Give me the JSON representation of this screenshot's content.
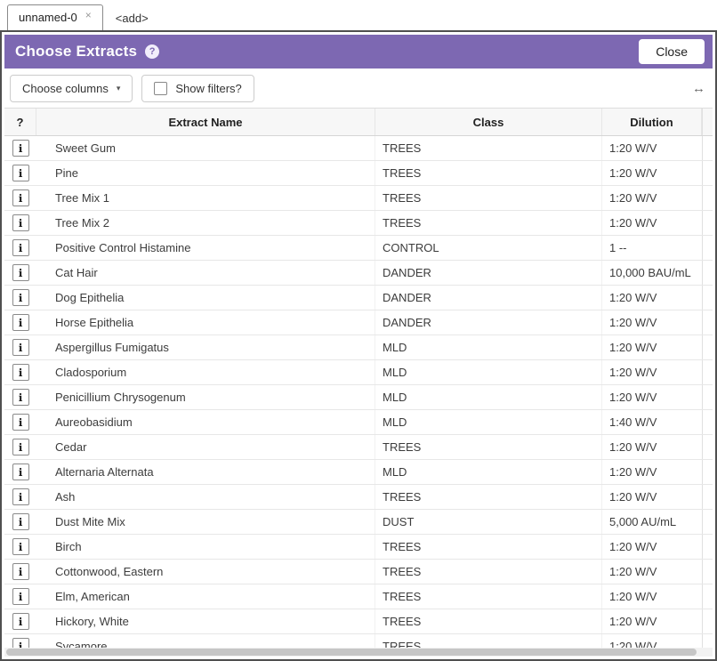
{
  "tabs": {
    "items": [
      {
        "label": "unnamed-0",
        "close_glyph": "×"
      },
      {
        "label": "<add>"
      }
    ]
  },
  "header": {
    "title": "Choose Extracts",
    "help_glyph": "?",
    "close_label": "Close"
  },
  "toolbar": {
    "choose_columns_label": "Choose columns",
    "caret_glyph": "▾",
    "show_filters_label": "Show filters?",
    "resize_glyph": "↔"
  },
  "table": {
    "headers": [
      "?",
      "Extract Name",
      "Class",
      "Dilution"
    ],
    "info_icon_glyph": "ℹ",
    "rows": [
      {
        "name": "Sweet Gum",
        "class": "TREES",
        "dilution": "1:20 W/V"
      },
      {
        "name": "Pine",
        "class": "TREES",
        "dilution": "1:20 W/V"
      },
      {
        "name": "Tree Mix 1",
        "class": "TREES",
        "dilution": "1:20 W/V"
      },
      {
        "name": "Tree Mix 2",
        "class": "TREES",
        "dilution": "1:20 W/V"
      },
      {
        "name": "Positive Control Histamine",
        "class": "CONTROL",
        "dilution": "1 --"
      },
      {
        "name": "Cat Hair",
        "class": "DANDER",
        "dilution": "10,000 BAU/mL"
      },
      {
        "name": "Dog Epithelia",
        "class": "DANDER",
        "dilution": "1:20 W/V"
      },
      {
        "name": "Horse Epithelia",
        "class": "DANDER",
        "dilution": "1:20 W/V"
      },
      {
        "name": "Aspergillus Fumigatus",
        "class": "MLD",
        "dilution": "1:20 W/V"
      },
      {
        "name": "Cladosporium",
        "class": "MLD",
        "dilution": "1:20 W/V"
      },
      {
        "name": "Penicillium Chrysogenum",
        "class": "MLD",
        "dilution": "1:20 W/V"
      },
      {
        "name": "Aureobasidium",
        "class": "MLD",
        "dilution": "1:40 W/V"
      },
      {
        "name": "Cedar",
        "class": "TREES",
        "dilution": "1:20 W/V"
      },
      {
        "name": "Alternaria Alternata",
        "class": "MLD",
        "dilution": "1:20 W/V"
      },
      {
        "name": "Ash",
        "class": "TREES",
        "dilution": "1:20 W/V"
      },
      {
        "name": "Dust Mite Mix",
        "class": "DUST",
        "dilution": "5,000 AU/mL"
      },
      {
        "name": "Birch",
        "class": "TREES",
        "dilution": "1:20 W/V"
      },
      {
        "name": "Cottonwood, Eastern",
        "class": "TREES",
        "dilution": "1:20 W/V"
      },
      {
        "name": "Elm, American",
        "class": "TREES",
        "dilution": "1:20 W/V"
      },
      {
        "name": "Hickory, White",
        "class": "TREES",
        "dilution": "1:20 W/V"
      },
      {
        "name": "Sycamore",
        "class": "TREES",
        "dilution": "1:20 W/V"
      }
    ]
  },
  "colors": {
    "header_purple": "#7d68b2"
  }
}
